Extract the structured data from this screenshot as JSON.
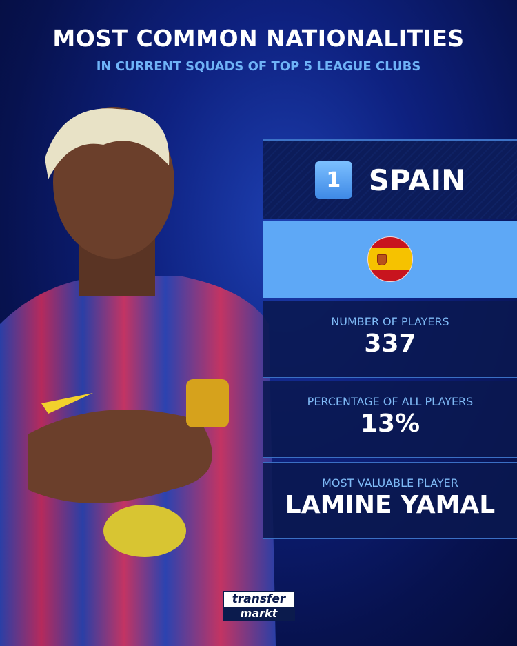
{
  "header": {
    "title": "MOST COMMON NATIONALITIES",
    "subtitle": "IN CURRENT SQUADS OF TOP 5 LEAGUE CLUBS"
  },
  "ranking": {
    "rank": "1",
    "country": "SPAIN",
    "flag_icon": "spain-flag-icon"
  },
  "stats": [
    {
      "label": "NUMBER OF PLAYERS",
      "value": "337"
    },
    {
      "label": "PERCENTAGE OF ALL PLAYERS",
      "value": "13%"
    },
    {
      "label": "MOST VALUABLE PLAYER",
      "value": "LAMINE YAMAL"
    }
  ],
  "logo": {
    "line1": "transfer",
    "line2": "markt"
  },
  "colors": {
    "panel_dark": "#0c1c5a",
    "flag_panel": "#5ea8f6",
    "label": "#7fbaf6",
    "accent": "#6fb3f7"
  }
}
